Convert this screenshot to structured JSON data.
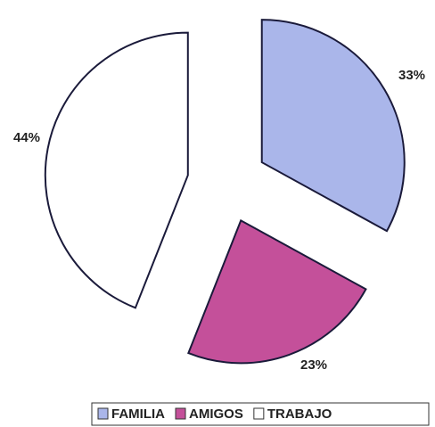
{
  "chart_data": {
    "type": "pie",
    "categories": [
      "FAMILIA",
      "AMIGOS",
      "TRABAJO"
    ],
    "values": [
      33,
      23,
      44
    ],
    "value_labels": [
      "33%",
      "23%",
      "44%"
    ],
    "colors": [
      "#aab6ea",
      "#c4509a",
      "#ffffff"
    ],
    "legend": "bottom"
  }
}
